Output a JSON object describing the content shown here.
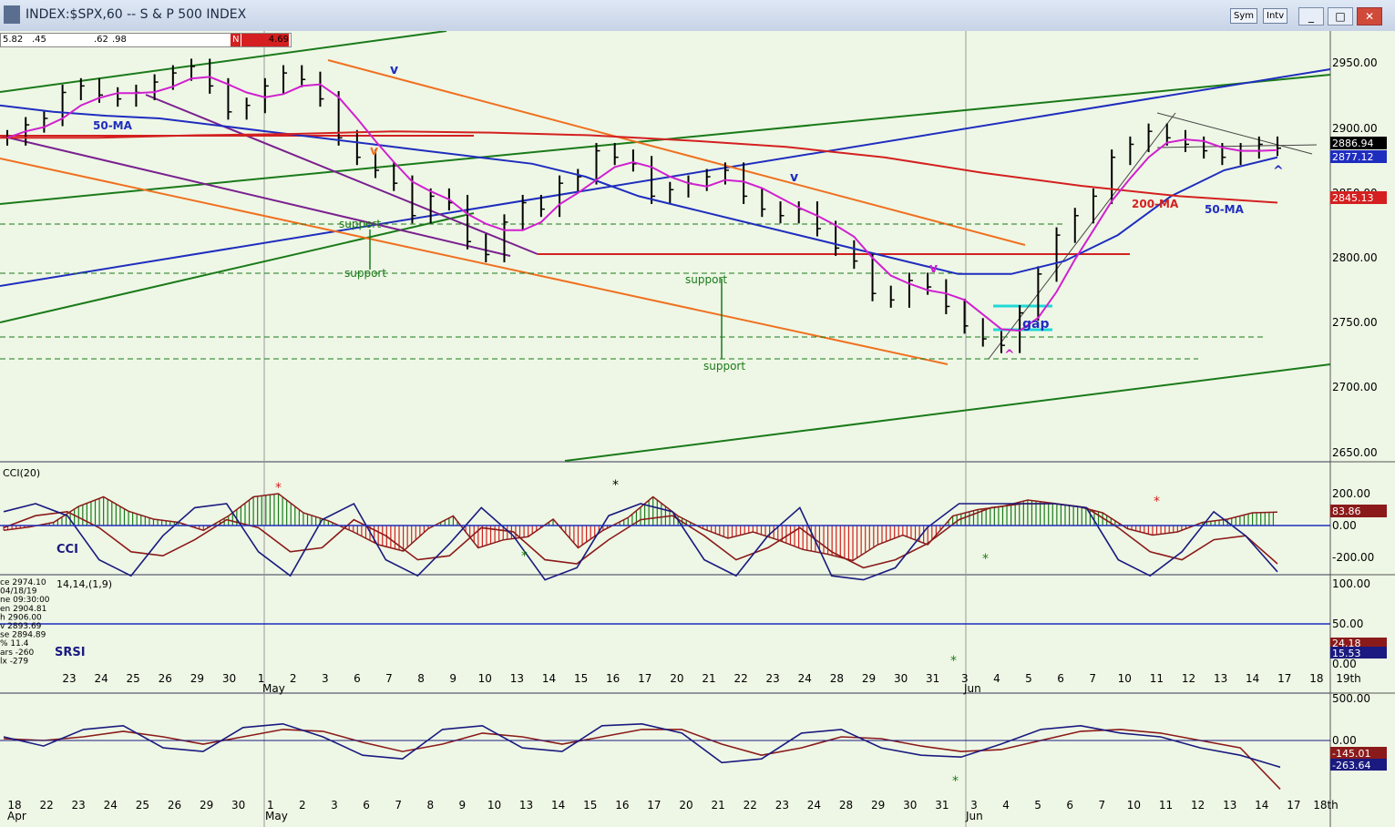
{
  "window": {
    "title": "INDEX:$SPX,60 -- S & P 500 INDEX",
    "sym_button": "Sym",
    "int_button": "Intv"
  },
  "quote_strip": [
    "5.82",
    ".45",
    ".62",
    ".98",
    "N",
    "4.69"
  ],
  "colors": {
    "bg": "#eef7e5",
    "green": "#1a7a1a",
    "blue": "#1f2dbf",
    "red": "#d42020",
    "orange": "#f07020",
    "magenta": "#d020d0",
    "purple": "#7a2090",
    "navy": "#1a1a80",
    "maroon": "#8b1a1a"
  },
  "price_panel": {
    "y_ticks": [
      "2950.00",
      "2900.00",
      "2850.00",
      "2800.00",
      "2750.00",
      "2700.00",
      "2650.00"
    ],
    "value_tags": [
      {
        "label": "2886.94",
        "color": "#000000"
      },
      {
        "label": "2877.12",
        "color": "#1f2dbf"
      },
      {
        "label": "2845.13",
        "color": "#d42020"
      }
    ],
    "annotations": [
      "50-MA",
      "200-MA",
      "50-MA",
      "support",
      "support",
      "support",
      "support",
      "gap",
      "v",
      "v",
      "v",
      "v",
      "^",
      "^"
    ]
  },
  "cci_panel": {
    "title": "CCI(20)",
    "label": "CCI",
    "y_ticks": [
      "200.00",
      "0.00",
      "-200.00"
    ],
    "value_tag": "83.86"
  },
  "srsi_panel": {
    "params": "14,14,(1,9)",
    "label": "SRSI",
    "y_ticks": [
      "100.00",
      "50.00",
      "0.00"
    ],
    "value_tags": [
      "24.18",
      "15.53"
    ],
    "side_info": [
      "ce 2974.10",
      "04/18/19",
      "ne 09:30:00",
      "en 2904.81",
      "h 2906.00",
      "v 2893.69",
      "se 2894.89",
      "% 11.4",
      "ars -260",
      "lx -279"
    ]
  },
  "macd_panel": {
    "y_ticks": [
      "500.00",
      "0.00"
    ],
    "value_tags": [
      "-145.01",
      "-263.64"
    ]
  },
  "x_axis_top": {
    "days": [
      "23",
      "24",
      "25",
      "26",
      "29",
      "30",
      "1",
      "2",
      "3",
      "6",
      "7",
      "8",
      "9",
      "10",
      "13",
      "14",
      "15",
      "16",
      "17",
      "20",
      "21",
      "22",
      "23",
      "24",
      "28",
      "29",
      "30",
      "31",
      "3",
      "4",
      "5",
      "6",
      "7",
      "10",
      "11",
      "12",
      "13",
      "14",
      "17",
      "18",
      "19th"
    ],
    "months": [
      "May",
      "Jun"
    ]
  },
  "x_axis_bottom": {
    "days": [
      "18",
      "22",
      "23",
      "24",
      "25",
      "26",
      "29",
      "30",
      "1",
      "2",
      "3",
      "6",
      "7",
      "8",
      "9",
      "10",
      "13",
      "14",
      "15",
      "16",
      "17",
      "20",
      "21",
      "22",
      "23",
      "24",
      "28",
      "29",
      "30",
      "31",
      "3",
      "4",
      "5",
      "6",
      "7",
      "10",
      "11",
      "12",
      "13",
      "14",
      "17",
      "18th"
    ],
    "months": [
      "Apr",
      "May",
      "Jun"
    ]
  },
  "chart_data": {
    "type": "line",
    "title": "INDEX:$SPX,60 -- S & P 500 INDEX",
    "ylim": [
      2630,
      2980
    ],
    "price": [
      2895,
      2905,
      2910,
      2930,
      2935,
      2928,
      2925,
      2930,
      2938,
      2945,
      2950,
      2935,
      2915,
      2920,
      2935,
      2945,
      2940,
      2925,
      2895,
      2880,
      2870,
      2860,
      2835,
      2850,
      2845,
      2815,
      2805,
      2830,
      2845,
      2840,
      2860,
      2865,
      2885,
      2880,
      2875,
      2850,
      2855,
      2860,
      2865,
      2870,
      2850,
      2840,
      2835,
      2840,
      2825,
      2810,
      2800,
      2775,
      2770,
      2785,
      2780,
      2765,
      2750,
      2740,
      2735,
      2760,
      2790,
      2820,
      2835,
      2850,
      2880,
      2890,
      2900,
      2895,
      2890,
      2885,
      2880,
      2885,
      2890,
      2887
    ],
    "ma50": [
      2920,
      2915,
      2912,
      2910,
      2905,
      2900,
      2895,
      2890,
      2885,
      2880,
      2875,
      2865,
      2850,
      2840,
      2830,
      2820,
      2810,
      2800,
      2790,
      2790,
      2800,
      2820,
      2850,
      2870,
      2880
    ],
    "ma200": [
      2895,
      2895,
      2897,
      2898,
      2900,
      2899,
      2897,
      2893,
      2888,
      2880,
      2868,
      2858,
      2850,
      2845
    ],
    "cci": [
      -30,
      -10,
      20,
      120,
      180,
      90,
      40,
      20,
      -30,
      60,
      180,
      200,
      80,
      30,
      -40,
      -120,
      -160,
      -20,
      60,
      -140,
      -90,
      -70,
      40,
      -140,
      -30,
      50,
      180,
      60,
      -20,
      -80,
      -40,
      -90,
      -150,
      -180,
      -220,
      -120,
      -60,
      -120,
      60,
      100,
      120,
      160,
      140,
      120,
      80,
      -20,
      -60,
      -40,
      20,
      40,
      80,
      84
    ],
    "srsi": [
      90,
      100,
      85,
      30,
      10,
      60,
      95,
      100,
      40,
      10,
      80,
      100,
      30,
      10,
      50,
      95,
      60,
      5,
      20,
      85,
      100,
      90,
      30,
      10,
      60,
      95,
      10,
      5,
      20,
      70,
      100,
      100,
      100,
      100,
      95,
      30,
      10,
      40,
      90,
      60,
      15
    ],
    "srsi_signal": [
      70,
      85,
      90,
      70,
      40,
      35,
      55,
      80,
      70,
      40,
      45,
      80,
      60,
      30,
      35,
      70,
      65,
      30,
      25,
      55,
      80,
      85,
      60,
      30,
      45,
      70,
      40,
      20,
      30,
      50,
      80,
      95,
      100,
      100,
      95,
      70,
      40,
      30,
      55,
      60,
      25
    ],
    "macd": [
      20,
      -30,
      60,
      80,
      -40,
      -60,
      70,
      90,
      20,
      -80,
      -100,
      60,
      80,
      -40,
      -60,
      80,
      90,
      40,
      -120,
      -100,
      40,
      60,
      -40,
      -80,
      -90,
      -20,
      60,
      80,
      40,
      20,
      -40,
      -80,
      -145
    ],
    "macd_signal": [
      10,
      0,
      20,
      50,
      20,
      -20,
      20,
      60,
      50,
      -10,
      -60,
      -20,
      40,
      20,
      -20,
      20,
      60,
      60,
      -20,
      -80,
      -40,
      20,
      10,
      -30,
      -60,
      -50,
      0,
      50,
      60,
      40,
      0,
      -40,
      -264
    ]
  }
}
